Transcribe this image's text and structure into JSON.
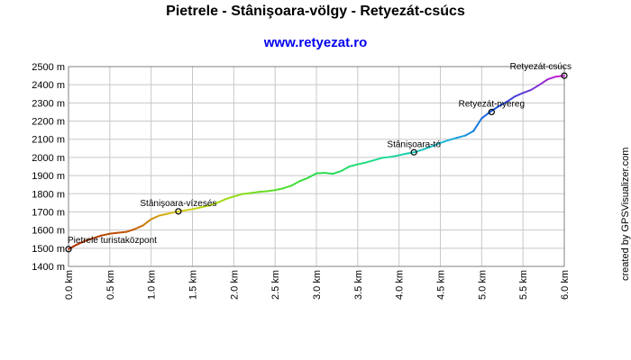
{
  "header": {
    "title": "Pietrele - Stânişoara-völgy - Retyezát-csúcs",
    "subtitle": "www.retyezat.ro"
  },
  "credit": "created by GPSVisualizer.com",
  "chart_data": {
    "type": "line",
    "title": "Pietrele - Stânişoara-völgy - Retyezát-csúcs",
    "xlabel": "",
    "ylabel": "",
    "xlim": [
      0,
      6.0
    ],
    "ylim": [
      1400,
      2500
    ],
    "x_ticks": [
      0.0,
      0.5,
      1.0,
      1.5,
      2.0,
      2.5,
      3.0,
      3.5,
      4.0,
      4.5,
      5.0,
      5.5,
      6.0
    ],
    "x_tick_labels": [
      "0.0 km",
      "0.5 km",
      "1.0 km",
      "1.5 km",
      "2.0 km",
      "2.5 km",
      "3.0 km",
      "3.5 km",
      "4.0 km",
      "4.5 km",
      "5.0 km",
      "5.5 km",
      "6.0 km"
    ],
    "y_ticks": [
      1400,
      1500,
      1600,
      1700,
      1800,
      1900,
      2000,
      2100,
      2200,
      2300,
      2400,
      2500
    ],
    "y_tick_labels": [
      "1400 m",
      "1500 m",
      "1600 m",
      "1700 m",
      "1800 m",
      "1900 m",
      "2000 m",
      "2100 m",
      "2200 m",
      "2300 m",
      "2400 m",
      "2500 m"
    ],
    "grid": true,
    "profile": [
      [
        0.0,
        1495
      ],
      [
        0.1,
        1520
      ],
      [
        0.2,
        1540
      ],
      [
        0.3,
        1555
      ],
      [
        0.4,
        1570
      ],
      [
        0.5,
        1580
      ],
      [
        0.6,
        1585
      ],
      [
        0.7,
        1590
      ],
      [
        0.8,
        1605
      ],
      [
        0.9,
        1625
      ],
      [
        1.0,
        1660
      ],
      [
        1.1,
        1680
      ],
      [
        1.2,
        1690
      ],
      [
        1.3,
        1700
      ],
      [
        1.4,
        1708
      ],
      [
        1.5,
        1715
      ],
      [
        1.6,
        1725
      ],
      [
        1.7,
        1735
      ],
      [
        1.8,
        1750
      ],
      [
        1.9,
        1770
      ],
      [
        2.0,
        1785
      ],
      [
        2.1,
        1798
      ],
      [
        2.2,
        1803
      ],
      [
        2.3,
        1810
      ],
      [
        2.4,
        1814
      ],
      [
        2.5,
        1820
      ],
      [
        2.6,
        1830
      ],
      [
        2.7,
        1845
      ],
      [
        2.8,
        1870
      ],
      [
        2.9,
        1888
      ],
      [
        3.0,
        1912
      ],
      [
        3.1,
        1915
      ],
      [
        3.2,
        1910
      ],
      [
        3.3,
        1925
      ],
      [
        3.4,
        1950
      ],
      [
        3.5,
        1962
      ],
      [
        3.6,
        1972
      ],
      [
        3.7,
        1985
      ],
      [
        3.8,
        1998
      ],
      [
        3.9,
        2003
      ],
      [
        4.0,
        2012
      ],
      [
        4.1,
        2022
      ],
      [
        4.2,
        2030
      ],
      [
        4.3,
        2045
      ],
      [
        4.4,
        2062
      ],
      [
        4.5,
        2080
      ],
      [
        4.6,
        2095
      ],
      [
        4.7,
        2108
      ],
      [
        4.8,
        2120
      ],
      [
        4.9,
        2145
      ],
      [
        5.0,
        2215
      ],
      [
        5.1,
        2250
      ],
      [
        5.2,
        2280
      ],
      [
        5.3,
        2305
      ],
      [
        5.4,
        2335
      ],
      [
        5.5,
        2355
      ],
      [
        5.6,
        2372
      ],
      [
        5.7,
        2400
      ],
      [
        5.8,
        2430
      ],
      [
        5.9,
        2445
      ],
      [
        6.0,
        2450
      ]
    ],
    "waypoints": [
      {
        "name": "Pietrele turistaközpont",
        "x": 0.0,
        "y": 1495
      },
      {
        "name": "Stânişoara-vízesés",
        "x": 1.33,
        "y": 1703
      },
      {
        "name": "Stânişoara-tó",
        "x": 4.18,
        "y": 2028
      },
      {
        "name": "Retyezát-nyereg",
        "x": 5.12,
        "y": 2250
      },
      {
        "name": "Retyezát-csúcs",
        "x": 6.0,
        "y": 2450
      }
    ]
  }
}
